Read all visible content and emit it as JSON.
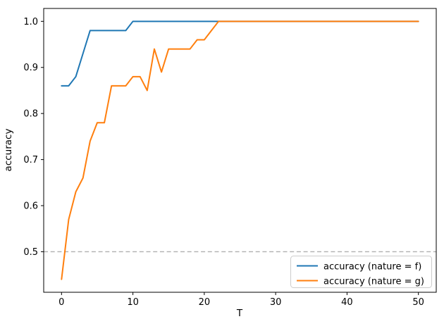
{
  "figure": {
    "background": "#ffffff"
  },
  "chart_data": {
    "type": "line",
    "title": "",
    "xlabel": "T",
    "ylabel": "accuracy",
    "xlim": [
      -2.5,
      52.5
    ],
    "ylim": [
      0.412,
      1.028
    ],
    "grid": false,
    "xticks": {
      "values": [
        0,
        10,
        20,
        30,
        40,
        50
      ],
      "labels": [
        "0",
        "10",
        "20",
        "30",
        "40",
        "50"
      ]
    },
    "yticks": {
      "values": [
        0.5,
        0.6,
        0.7,
        0.8,
        0.9,
        1.0
      ],
      "labels": [
        "0.5",
        "0.6",
        "0.7",
        "0.8",
        "0.9",
        "1.0"
      ]
    },
    "x": [
      0,
      1,
      2,
      3,
      4,
      5,
      6,
      7,
      8,
      9,
      10,
      11,
      12,
      13,
      14,
      15,
      16,
      17,
      18,
      19,
      20,
      21,
      22,
      23,
      24,
      25,
      26,
      27,
      28,
      29,
      30,
      31,
      32,
      33,
      34,
      35,
      36,
      37,
      38,
      39,
      40,
      41,
      42,
      43,
      44,
      45,
      46,
      47,
      48,
      49,
      50
    ],
    "series": [
      {
        "name": "accuracy (nature = f)",
        "color": "#1f77b4",
        "values": [
          0.86,
          0.86,
          0.88,
          0.93,
          0.98,
          0.98,
          0.98,
          0.98,
          0.98,
          0.98,
          1.0,
          1.0,
          1.0,
          1.0,
          1.0,
          1.0,
          1.0,
          1.0,
          1.0,
          1.0,
          1.0,
          1.0,
          1.0,
          1.0,
          1.0,
          1.0,
          1.0,
          1.0,
          1.0,
          1.0,
          1.0,
          1.0,
          1.0,
          1.0,
          1.0,
          1.0,
          1.0,
          1.0,
          1.0,
          1.0,
          1.0,
          1.0,
          1.0,
          1.0,
          1.0,
          1.0,
          1.0,
          1.0,
          1.0,
          1.0,
          1.0
        ]
      },
      {
        "name": "accuracy (nature = g)",
        "color": "#ff7f0e",
        "values": [
          0.44,
          0.57,
          0.63,
          0.66,
          0.74,
          0.78,
          0.78,
          0.86,
          0.86,
          0.86,
          0.88,
          0.88,
          0.85,
          0.94,
          0.89,
          0.94,
          0.94,
          0.94,
          0.94,
          0.96,
          0.96,
          0.98,
          1.0,
          1.0,
          1.0,
          1.0,
          1.0,
          1.0,
          1.0,
          1.0,
          1.0,
          1.0,
          1.0,
          1.0,
          1.0,
          1.0,
          1.0,
          1.0,
          1.0,
          1.0,
          1.0,
          1.0,
          1.0,
          1.0,
          1.0,
          1.0,
          1.0,
          1.0,
          1.0,
          1.0,
          1.0
        ]
      }
    ],
    "reference_line": {
      "y": 0.5,
      "color": "#b0b0b0",
      "style": "dashed"
    },
    "legend": {
      "position": "lower right",
      "labels": [
        "accuracy (nature = f)",
        "accuracy (nature = g)"
      ]
    },
    "axes_color": "#000000"
  }
}
